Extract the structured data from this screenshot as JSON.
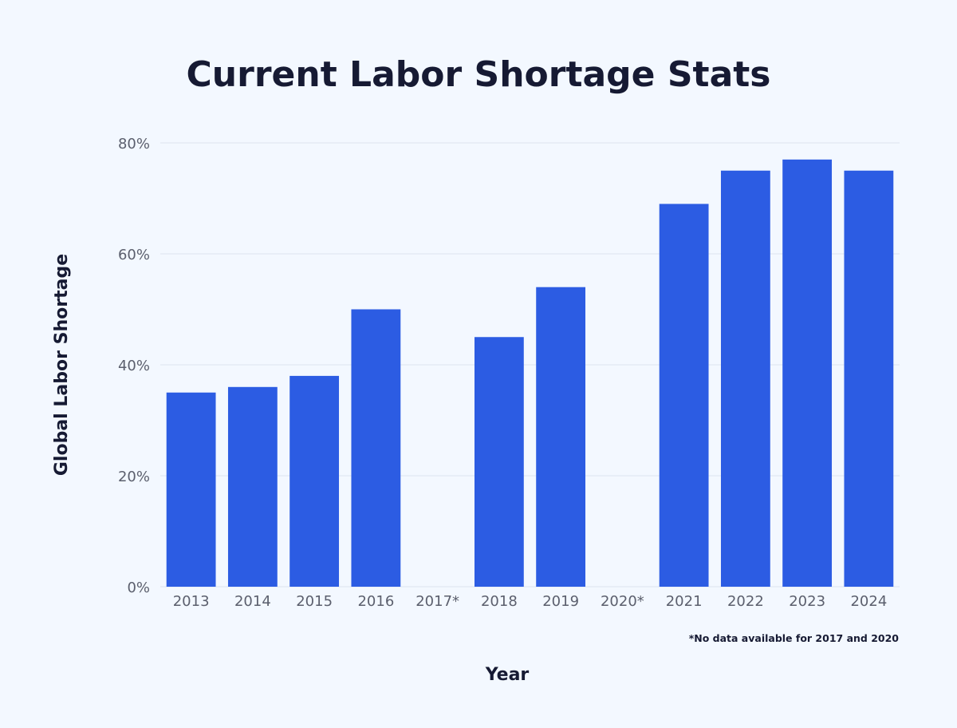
{
  "chart_data": {
    "type": "bar",
    "title": "Current Labor Shortage Stats",
    "xlabel": "Year",
    "ylabel": "Global Labor Shortage",
    "categories": [
      "2013",
      "2014",
      "2015",
      "2016",
      "2017*",
      "2018",
      "2019",
      "2020*",
      "2021",
      "2022",
      "2023",
      "2024"
    ],
    "values": [
      35,
      36,
      38,
      50,
      null,
      45,
      54,
      null,
      69,
      75,
      77,
      75
    ],
    "ylim": [
      0,
      80
    ],
    "yticks": [
      "0%",
      "20%",
      "40%",
      "60%",
      "80%"
    ],
    "grid": true,
    "legend": "none",
    "footnote": "*No data available for 2017 and 2020",
    "colors": {
      "bar": "#2c5ce3",
      "grid": "#dde5ef",
      "background": "#f3f8ff",
      "text": "#161a33",
      "tick": "#5b5f6d"
    }
  }
}
